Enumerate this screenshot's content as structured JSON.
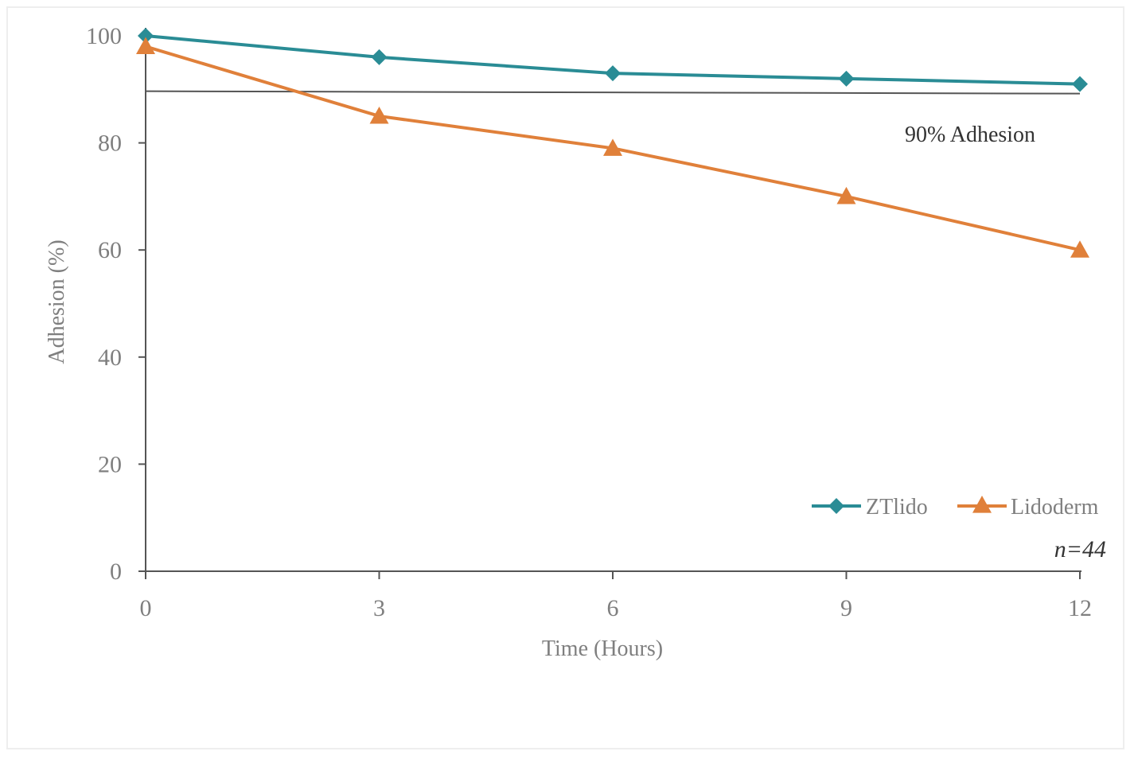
{
  "chart_data": {
    "type": "line",
    "title": "",
    "xlabel": "Time (Hours)",
    "ylabel": "Adhesion (%)",
    "x": [
      0,
      3,
      6,
      9,
      12
    ],
    "xlim": [
      0,
      12
    ],
    "ylim": [
      0,
      100
    ],
    "x_ticks": [
      "0",
      "3",
      "6",
      "9",
      "12"
    ],
    "y_ticks": [
      "0",
      "20",
      "40",
      "60",
      "80",
      "100"
    ],
    "grid": false,
    "legend_position": "bottom-right",
    "series": [
      {
        "name": "ZTlido",
        "values": [
          100,
          96,
          93,
          92,
          91
        ],
        "color": "#2a8c95",
        "marker": "diamond"
      },
      {
        "name": "Lidoderm",
        "values": [
          98,
          85,
          79,
          70,
          60
        ],
        "color": "#e0803a",
        "marker": "triangle"
      }
    ],
    "reference_line": {
      "value": 89.5,
      "label": "90% Adhesion",
      "color": "#555555"
    },
    "annotations": [
      {
        "text": "n=44",
        "style": "italic"
      }
    ]
  }
}
